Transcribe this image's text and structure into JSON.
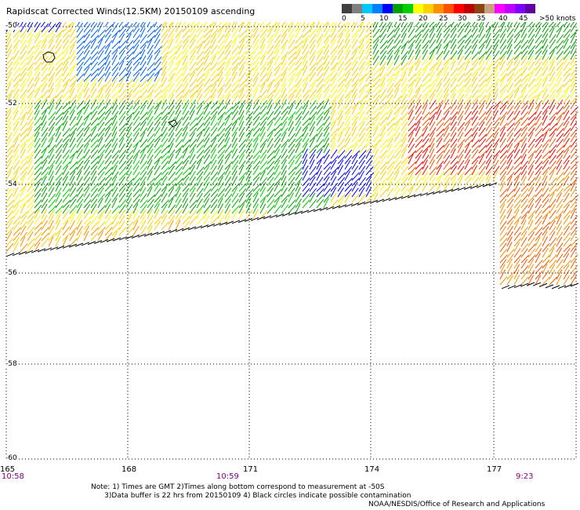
{
  "title": "Rapidscat Corrected Winds(12.5KM) 20150109 ascending",
  "legend": {
    "colors": [
      "#404040",
      "#808080",
      "#00c8ff",
      "#0080ff",
      "#0000ff",
      "#00a000",
      "#00d000",
      "#ffff00",
      "#ffd000",
      "#ff9000",
      "#ff5000",
      "#ff0000",
      "#c00000",
      "#8b4513",
      "#c8a080",
      "#ff00ff",
      "#c000ff",
      "#8000ff",
      "#6000a0"
    ],
    "labels": [
      "0",
      "5",
      "10",
      "15",
      "20",
      "25",
      "30",
      "35",
      "40",
      "45",
      ">50 knots"
    ]
  },
  "axes": {
    "lat_labels": [
      "-50",
      "-52",
      "-54",
      "-56",
      "-58",
      "-60"
    ],
    "lon_labels": [
      "165",
      "168",
      "171",
      "174",
      "177"
    ],
    "time_labels": [
      "10:58",
      "10:59",
      "9:23"
    ]
  },
  "notes": {
    "line1": "Note: 1) Times are GMT 2)Times along bottom correspond to measurement at -50S",
    "line2": "3)Data buffer is 22 hrs from 20150109 4) Black circles indicate possible contamination"
  },
  "credit": "NOAA/NESDIS/Office of Research and Applications"
}
